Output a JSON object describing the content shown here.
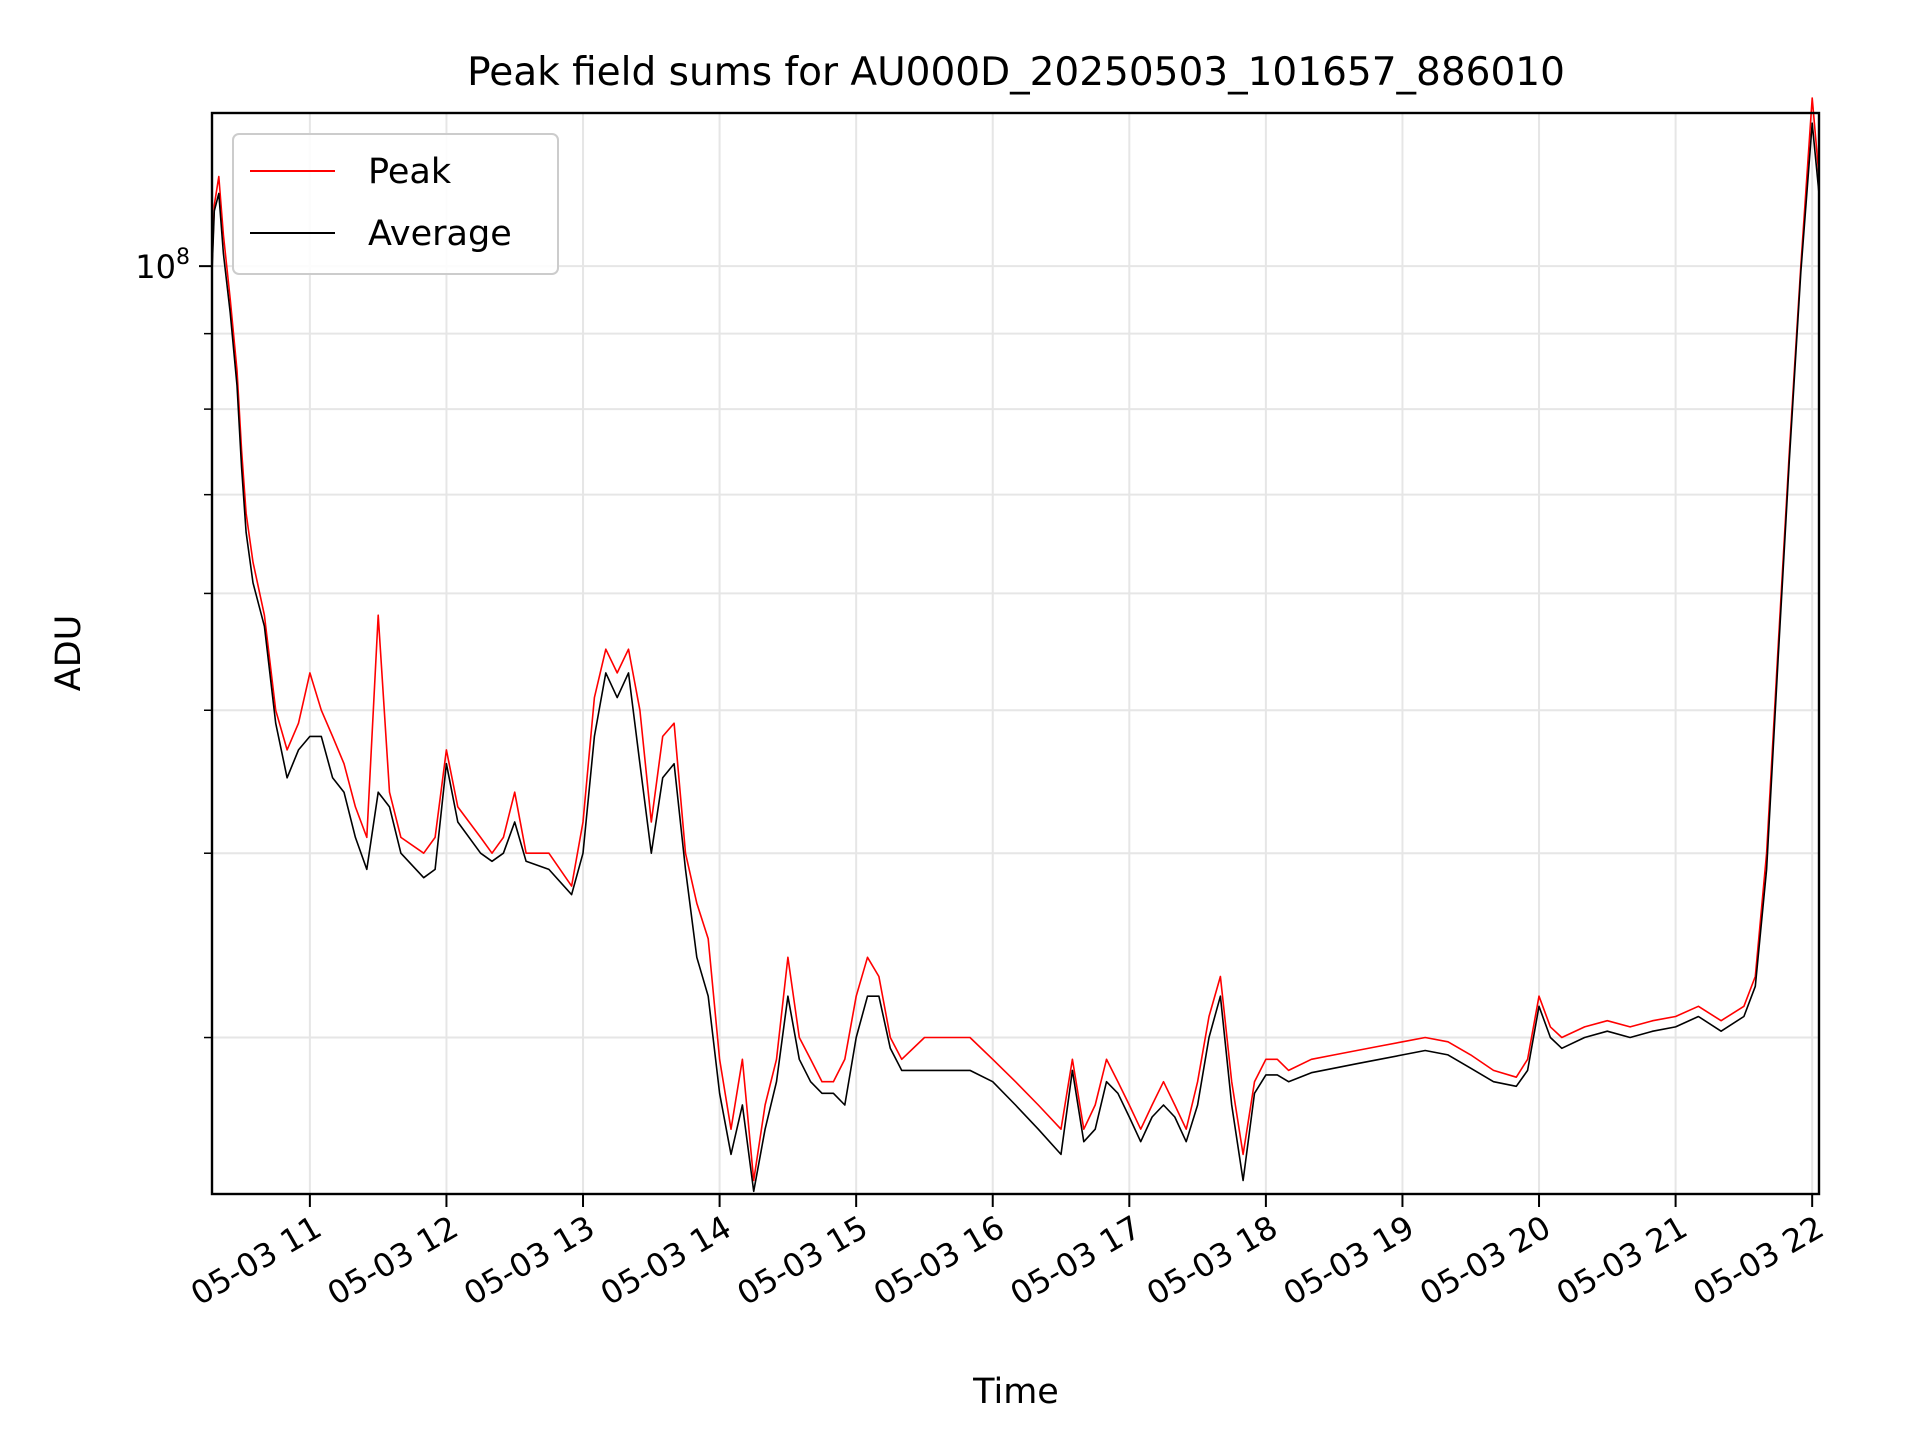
{
  "chart_data": {
    "type": "line",
    "title": "Peak field sums for AU000D_20250503_101657_886010",
    "xlabel": "Time",
    "ylabel": "ADU",
    "yscale": "log",
    "ylim": [
      23500000,
      127000000
    ],
    "xlim": [
      "05-03 10:17",
      "05-03 22:03"
    ],
    "grid": true,
    "legend_position": "top-left",
    "x_ticks": [
      "05-03 11",
      "05-03 12",
      "05-03 13",
      "05-03 14",
      "05-03 15",
      "05-03 16",
      "05-03 17",
      "05-03 18",
      "05-03 19",
      "05-03 20",
      "05-03 21",
      "05-03 22"
    ],
    "y_major_ticks": [
      {
        "label_base": "10",
        "label_exp": "8",
        "value": 100000000
      }
    ],
    "y_minor_ticks": [
      30000000,
      40000000,
      50000000,
      60000000,
      70000000,
      80000000,
      90000000
    ],
    "series": [
      {
        "name": "Peak",
        "color": "#ff0000",
        "x": [
          "05-03 10:17",
          "05-03 10:18",
          "05-03 10:20",
          "05-03 10:22",
          "05-03 10:25",
          "05-03 10:28",
          "05-03 10:30",
          "05-03 10:32",
          "05-03 10:35",
          "05-03 10:40",
          "05-03 10:45",
          "05-03 10:50",
          "05-03 10:55",
          "05-03 11:00",
          "05-03 11:05",
          "05-03 11:10",
          "05-03 11:15",
          "05-03 11:20",
          "05-03 11:25",
          "05-03 11:30",
          "05-03 11:35",
          "05-03 11:40",
          "05-03 11:50",
          "05-03 11:55",
          "05-03 12:00",
          "05-03 12:05",
          "05-03 12:15",
          "05-03 12:20",
          "05-03 12:25",
          "05-03 12:30",
          "05-03 12:35",
          "05-03 12:45",
          "05-03 12:55",
          "05-03 13:00",
          "05-03 13:05",
          "05-03 13:10",
          "05-03 13:15",
          "05-03 13:20",
          "05-03 13:25",
          "05-03 13:30",
          "05-03 13:35",
          "05-03 13:40",
          "05-03 13:45",
          "05-03 13:50",
          "05-03 13:55",
          "05-03 14:00",
          "05-03 14:05",
          "05-03 14:10",
          "05-03 14:15",
          "05-03 14:20",
          "05-03 14:25",
          "05-03 14:30",
          "05-03 14:35",
          "05-03 14:40",
          "05-03 14:45",
          "05-03 14:50",
          "05-03 14:55",
          "05-03 15:00",
          "05-03 15:05",
          "05-03 15:10",
          "05-03 15:15",
          "05-03 15:20",
          "05-03 15:30",
          "05-03 15:40",
          "05-03 15:50",
          "05-03 16:00",
          "05-03 16:10",
          "05-03 16:20",
          "05-03 16:30",
          "05-03 16:35",
          "05-03 16:40",
          "05-03 16:45",
          "05-03 16:50",
          "05-03 16:55",
          "05-03 17:00",
          "05-03 17:05",
          "05-03 17:10",
          "05-03 17:15",
          "05-03 17:20",
          "05-03 17:25",
          "05-03 17:30",
          "05-03 17:35",
          "05-03 17:40",
          "05-03 17:45",
          "05-03 17:50",
          "05-03 17:55",
          "05-03 18:00",
          "05-03 18:05",
          "05-03 18:10",
          "05-03 18:20",
          "05-03 18:30",
          "05-03 18:40",
          "05-03 18:50",
          "05-03 19:00",
          "05-03 19:10",
          "05-03 19:20",
          "05-03 19:30",
          "05-03 19:40",
          "05-03 19:50",
          "05-03 19:55",
          "05-03 20:00",
          "05-03 20:05",
          "05-03 20:10",
          "05-03 20:20",
          "05-03 20:30",
          "05-03 20:40",
          "05-03 20:50",
          "05-03 21:00",
          "05-03 21:10",
          "05-03 21:20",
          "05-03 21:30",
          "05-03 21:35",
          "05-03 21:40",
          "05-03 21:45",
          "05-03 21:50",
          "05-03 21:55",
          "05-03 22:00",
          "05-03 22:03"
        ],
        "y": [
          100000000,
          110000000,
          115000000,
          105000000,
          95000000,
          85000000,
          75000000,
          68000000,
          63000000,
          58000000,
          50000000,
          47000000,
          49000000,
          53000000,
          50000000,
          48000000,
          46000000,
          43000000,
          41000000,
          58000000,
          44000000,
          41000000,
          40000000,
          41000000,
          47000000,
          43000000,
          41000000,
          40000000,
          41000000,
          44000000,
          40000000,
          40000000,
          38000000,
          42000000,
          51000000,
          55000000,
          53000000,
          55000000,
          50000000,
          42000000,
          48000000,
          49000000,
          40000000,
          37000000,
          35000000,
          29000000,
          26000000,
          29000000,
          24000000,
          27000000,
          29000000,
          34000000,
          30000000,
          29000000,
          28000000,
          28000000,
          29000000,
          32000000,
          34000000,
          33000000,
          30000000,
          29000000,
          30000000,
          30000000,
          30000000,
          29000000,
          28000000,
          27000000,
          26000000,
          29000000,
          26000000,
          27000000,
          29000000,
          28000000,
          27000000,
          26000000,
          27000000,
          28000000,
          27000000,
          26000000,
          28000000,
          31000000,
          33000000,
          28000000,
          25000000,
          28000000,
          29000000,
          29000000,
          28500000,
          29000000,
          29200000,
          29400000,
          29600000,
          29800000,
          30000000,
          29800000,
          29200000,
          28500000,
          28200000,
          29000000,
          32000000,
          30500000,
          30000000,
          30500000,
          30800000,
          30500000,
          30800000,
          31000000,
          31500000,
          30800000,
          31500000,
          33000000,
          40000000,
          55000000,
          75000000,
          100000000,
          130000000,
          115000000
        ]
      },
      {
        "name": "Average",
        "color": "#000000",
        "x": [
          "05-03 10:17",
          "05-03 10:18",
          "05-03 10:20",
          "05-03 10:22",
          "05-03 10:25",
          "05-03 10:28",
          "05-03 10:30",
          "05-03 10:32",
          "05-03 10:35",
          "05-03 10:40",
          "05-03 10:45",
          "05-03 10:50",
          "05-03 10:55",
          "05-03 11:00",
          "05-03 11:05",
          "05-03 11:10",
          "05-03 11:15",
          "05-03 11:20",
          "05-03 11:25",
          "05-03 11:30",
          "05-03 11:35",
          "05-03 11:40",
          "05-03 11:50",
          "05-03 11:55",
          "05-03 12:00",
          "05-03 12:05",
          "05-03 12:15",
          "05-03 12:20",
          "05-03 12:25",
          "05-03 12:30",
          "05-03 12:35",
          "05-03 12:45",
          "05-03 12:55",
          "05-03 13:00",
          "05-03 13:05",
          "05-03 13:10",
          "05-03 13:15",
          "05-03 13:20",
          "05-03 13:25",
          "05-03 13:30",
          "05-03 13:35",
          "05-03 13:40",
          "05-03 13:45",
          "05-03 13:50",
          "05-03 13:55",
          "05-03 14:00",
          "05-03 14:05",
          "05-03 14:10",
          "05-03 14:15",
          "05-03 14:20",
          "05-03 14:25",
          "05-03 14:30",
          "05-03 14:35",
          "05-03 14:40",
          "05-03 14:45",
          "05-03 14:50",
          "05-03 14:55",
          "05-03 15:00",
          "05-03 15:05",
          "05-03 15:10",
          "05-03 15:15",
          "05-03 15:20",
          "05-03 15:30",
          "05-03 15:40",
          "05-03 15:50",
          "05-03 16:00",
          "05-03 16:10",
          "05-03 16:20",
          "05-03 16:30",
          "05-03 16:35",
          "05-03 16:40",
          "05-03 16:45",
          "05-03 16:50",
          "05-03 16:55",
          "05-03 17:00",
          "05-03 17:05",
          "05-03 17:10",
          "05-03 17:15",
          "05-03 17:20",
          "05-03 17:25",
          "05-03 17:30",
          "05-03 17:35",
          "05-03 17:40",
          "05-03 17:45",
          "05-03 17:50",
          "05-03 17:55",
          "05-03 18:00",
          "05-03 18:05",
          "05-03 18:10",
          "05-03 18:20",
          "05-03 18:30",
          "05-03 18:40",
          "05-03 18:50",
          "05-03 19:00",
          "05-03 19:10",
          "05-03 19:20",
          "05-03 19:30",
          "05-03 19:40",
          "05-03 19:50",
          "05-03 19:55",
          "05-03 20:00",
          "05-03 20:05",
          "05-03 20:10",
          "05-03 20:20",
          "05-03 20:30",
          "05-03 20:40",
          "05-03 20:50",
          "05-03 21:00",
          "05-03 21:10",
          "05-03 21:20",
          "05-03 21:30",
          "05-03 21:35",
          "05-03 21:40",
          "05-03 21:45",
          "05-03 21:50",
          "05-03 21:55",
          "05-03 22:00",
          "05-03 22:03"
        ],
        "y": [
          99000000,
          109000000,
          112000000,
          102000000,
          93000000,
          83000000,
          73000000,
          66000000,
          61000000,
          57000000,
          49000000,
          45000000,
          47000000,
          48000000,
          48000000,
          45000000,
          44000000,
          41000000,
          39000000,
          44000000,
          43000000,
          40000000,
          38500000,
          39000000,
          46000000,
          42000000,
          40000000,
          39500000,
          40000000,
          42000000,
          39500000,
          39000000,
          37500000,
          40000000,
          48000000,
          53000000,
          51000000,
          53000000,
          46000000,
          40000000,
          45000000,
          46000000,
          39000000,
          34000000,
          32000000,
          27500000,
          25000000,
          27000000,
          23600000,
          26000000,
          28000000,
          32000000,
          29000000,
          28000000,
          27500000,
          27500000,
          27000000,
          30000000,
          32000000,
          32000000,
          29500000,
          28500000,
          28500000,
          28500000,
          28500000,
          28000000,
          27000000,
          26000000,
          25000000,
          28500000,
          25500000,
          26000000,
          28000000,
          27500000,
          26500000,
          25500000,
          26500000,
          27000000,
          26500000,
          25500000,
          27000000,
          30000000,
          32000000,
          27000000,
          24000000,
          27500000,
          28300000,
          28300000,
          28000000,
          28400000,
          28600000,
          28800000,
          29000000,
          29200000,
          29400000,
          29200000,
          28600000,
          28000000,
          27800000,
          28500000,
          31500000,
          30000000,
          29500000,
          30000000,
          30300000,
          30000000,
          30300000,
          30500000,
          31000000,
          30300000,
          31000000,
          32500000,
          39000000,
          54000000,
          74000000,
          99000000,
          125000000,
          112000000
        ]
      }
    ]
  }
}
